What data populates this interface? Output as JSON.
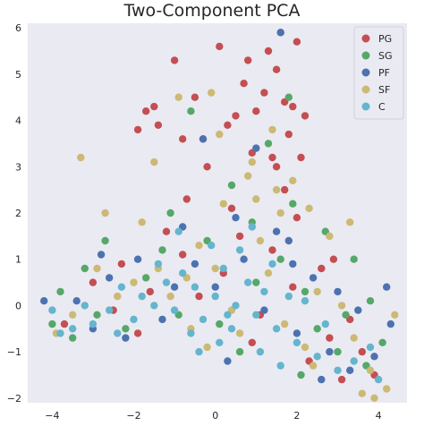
{
  "chart_data": {
    "type": "scatter",
    "title": "Two-Component PCA",
    "xlabel": "",
    "ylabel": "",
    "xlim": [
      -4.6,
      4.7
    ],
    "ylim": [
      -2.1,
      6.1
    ],
    "x_ticks": [
      "−4",
      "−2",
      "0",
      "2",
      "4"
    ],
    "y_ticks": [
      "−2",
      "−1",
      "0",
      "1",
      "2",
      "3",
      "4",
      "5",
      "6"
    ],
    "grid": false,
    "legend_position": "top-right",
    "series": [
      {
        "name": "PG",
        "color": "#c44e52",
        "points": [
          [
            0.1,
            5.6
          ],
          [
            0.8,
            5.3
          ],
          [
            1.5,
            5.1
          ],
          [
            -1.0,
            5.3
          ],
          [
            1.2,
            4.6
          ],
          [
            1.7,
            4.4
          ],
          [
            0.5,
            4.1
          ],
          [
            -1.7,
            4.2
          ],
          [
            1.9,
            4.3
          ],
          [
            -0.5,
            4.5
          ],
          [
            0.3,
            3.9
          ],
          [
            1.8,
            3.7
          ],
          [
            -0.8,
            3.6
          ],
          [
            1.4,
            3.2
          ],
          [
            -1.4,
            3.9
          ],
          [
            2.0,
            5.7
          ],
          [
            1.6,
            5.9
          ],
          [
            2.2,
            4.1
          ],
          [
            -0.3,
            3.6
          ],
          [
            -1.9,
            3.8
          ],
          [
            0.9,
            3.3
          ],
          [
            1.5,
            3.0
          ],
          [
            -0.2,
            3.0
          ],
          [
            2.1,
            3.2
          ],
          [
            0.7,
            4.8
          ],
          [
            1.3,
            5.5
          ],
          [
            -1.5,
            4.3
          ],
          [
            1.0,
            4.2
          ],
          [
            2.0,
            1.9
          ],
          [
            -1.2,
            1.6
          ],
          [
            0.6,
            1.5
          ],
          [
            -2.3,
            0.9
          ],
          [
            1.4,
            1.2
          ],
          [
            -0.8,
            1.1
          ],
          [
            2.6,
            0.8
          ],
          [
            -3.0,
            0.5
          ],
          [
            0.2,
            0.7
          ],
          [
            1.9,
            0.4
          ],
          [
            -1.6,
            0.3
          ],
          [
            3.3,
            -0.3
          ],
          [
            2.8,
            -0.7
          ],
          [
            3.6,
            -1.0
          ],
          [
            -3.7,
            -0.4
          ],
          [
            -2.5,
            -0.1
          ],
          [
            1.1,
            -0.2
          ],
          [
            3.9,
            -1.5
          ],
          [
            -0.4,
            0.2
          ],
          [
            0.9,
            -0.8
          ],
          [
            2.3,
            -1.2
          ],
          [
            -1.9,
            -0.6
          ],
          [
            3.1,
            -1.6
          ],
          [
            0.4,
            2.1
          ],
          [
            -0.7,
            2.3
          ],
          [
            1.7,
            2.5
          ],
          [
            2.9,
            1.0
          ]
        ]
      },
      {
        "name": "SG",
        "color": "#55a868",
        "points": [
          [
            1.8,
            4.5
          ],
          [
            -0.6,
            4.2
          ],
          [
            1.3,
            3.5
          ],
          [
            0.4,
            2.6
          ],
          [
            1.9,
            2.2
          ],
          [
            -1.1,
            2.0
          ],
          [
            2.7,
            1.6
          ],
          [
            -2.7,
            1.4
          ],
          [
            3.4,
            1.0
          ],
          [
            -3.2,
            0.8
          ],
          [
            0.9,
            1.8
          ],
          [
            -0.2,
            1.4
          ],
          [
            2.2,
            0.3
          ],
          [
            -1.7,
            0.6
          ],
          [
            3.8,
            0.1
          ],
          [
            -4.0,
            -0.4
          ],
          [
            -3.5,
            -0.7
          ],
          [
            1.6,
            1.0
          ],
          [
            0.1,
            -0.4
          ],
          [
            -0.9,
            -0.2
          ],
          [
            2.5,
            -0.5
          ],
          [
            3.0,
            -1.0
          ],
          [
            3.7,
            -1.3
          ],
          [
            -2.9,
            -0.2
          ],
          [
            -1.3,
            1.2
          ],
          [
            0.6,
            -1.0
          ],
          [
            4.1,
            -0.8
          ],
          [
            2.1,
            -1.5
          ],
          [
            -3.8,
            0.3
          ],
          [
            1.0,
            0.5
          ],
          [
            -2.2,
            -0.5
          ],
          [
            3.2,
            -0.2
          ]
        ]
      },
      {
        "name": "PF",
        "color": "#4c72b0",
        "points": [
          [
            1.6,
            5.9
          ],
          [
            -0.3,
            3.6
          ],
          [
            1.0,
            3.4
          ],
          [
            -0.8,
            1.7
          ],
          [
            0.5,
            1.9
          ],
          [
            1.8,
            1.4
          ],
          [
            -1.9,
            1.0
          ],
          [
            2.4,
            0.6
          ],
          [
            -2.6,
            0.6
          ],
          [
            3.0,
            0.3
          ],
          [
            -3.4,
            0.1
          ],
          [
            3.5,
            -0.1
          ],
          [
            -4.2,
            0.1
          ],
          [
            0.0,
            0.4
          ],
          [
            1.2,
            -0.1
          ],
          [
            -1.3,
            -0.3
          ],
          [
            2.0,
            -0.6
          ],
          [
            -2.2,
            -0.7
          ],
          [
            2.8,
            -1.0
          ],
          [
            3.3,
            -1.4
          ],
          [
            3.9,
            -1.1
          ],
          [
            0.7,
            1.0
          ],
          [
            -0.5,
            0.9
          ],
          [
            1.5,
            1.6
          ],
          [
            4.3,
            -0.4
          ],
          [
            -3.0,
            -0.5
          ],
          [
            2.6,
            -1.6
          ],
          [
            0.3,
            -1.2
          ],
          [
            -1.0,
            0.4
          ],
          [
            1.9,
            0.9
          ],
          [
            4.2,
            0.4
          ],
          [
            -2.8,
            1.1
          ]
        ]
      },
      {
        "name": "SF",
        "color": "#ccb974",
        "points": [
          [
            -3.3,
            3.2
          ],
          [
            -1.5,
            3.1
          ],
          [
            -0.9,
            4.5
          ],
          [
            0.1,
            3.7
          ],
          [
            1.4,
            3.8
          ],
          [
            1.5,
            2.5
          ],
          [
            1.0,
            2.3
          ],
          [
            -2.7,
            2.0
          ],
          [
            -1.8,
            1.8
          ],
          [
            0.2,
            2.2
          ],
          [
            0.8,
            2.8
          ],
          [
            1.9,
            2.7
          ],
          [
            0.9,
            3.1
          ],
          [
            -0.1,
            4.6
          ],
          [
            2.3,
            2.1
          ],
          [
            -0.4,
            1.3
          ],
          [
            -1.4,
            0.8
          ],
          [
            1.3,
            0.7
          ],
          [
            2.5,
            0.3
          ],
          [
            -2.4,
            0.2
          ],
          [
            3.1,
            0.0
          ],
          [
            -3.5,
            -0.2
          ],
          [
            0.4,
            -0.1
          ],
          [
            -0.6,
            -0.5
          ],
          [
            1.7,
            -0.4
          ],
          [
            2.2,
            -0.9
          ],
          [
            3.4,
            -0.7
          ],
          [
            3.8,
            -1.4
          ],
          [
            4.2,
            -1.8
          ],
          [
            3.6,
            -1.9
          ],
          [
            -3.9,
            -0.6
          ],
          [
            0.0,
            0.8
          ],
          [
            -1.1,
            0.2
          ],
          [
            1.1,
            1.4
          ],
          [
            -2.0,
            0.5
          ],
          [
            2.8,
            1.5
          ],
          [
            3.3,
            1.8
          ],
          [
            4.4,
            -0.2
          ],
          [
            0.6,
            -0.6
          ],
          [
            -0.2,
            -0.9
          ],
          [
            1.6,
            2.0
          ],
          [
            -0.7,
            0.6
          ],
          [
            2.4,
            -1.3
          ],
          [
            3.9,
            -2.0
          ],
          [
            -2.9,
            0.8
          ]
        ]
      },
      {
        "name": "C",
        "color": "#64b5cd",
        "points": [
          [
            -0.5,
            0.4
          ],
          [
            0.0,
            0.2
          ],
          [
            0.5,
            0.0
          ],
          [
            -0.3,
            -0.3
          ],
          [
            0.4,
            -0.5
          ],
          [
            1.0,
            -0.2
          ],
          [
            -1.0,
            -0.1
          ],
          [
            1.5,
            -0.5
          ],
          [
            -1.5,
            0.0
          ],
          [
            2.0,
            -0.8
          ],
          [
            -2.0,
            -0.3
          ],
          [
            0.2,
            0.8
          ],
          [
            -0.8,
            0.7
          ],
          [
            0.8,
            0.5
          ],
          [
            1.2,
            0.3
          ],
          [
            -1.2,
            0.5
          ],
          [
            2.5,
            -1.1
          ],
          [
            3.0,
            -1.4
          ],
          [
            -2.6,
            -0.1
          ],
          [
            -3.0,
            -0.4
          ],
          [
            -3.5,
            -0.5
          ],
          [
            0.1,
            -0.8
          ],
          [
            -0.4,
            -1.0
          ],
          [
            1.8,
            0.2
          ],
          [
            -1.8,
            0.2
          ],
          [
            3.4,
            -1.2
          ],
          [
            0.6,
            1.2
          ],
          [
            -0.1,
            1.3
          ],
          [
            1.4,
            0.9
          ],
          [
            -1.4,
            0.9
          ],
          [
            2.2,
            0.1
          ],
          [
            -2.3,
            0.4
          ],
          [
            0.3,
            -0.2
          ],
          [
            -0.6,
            -0.6
          ],
          [
            1.1,
            -1.0
          ],
          [
            2.7,
            -0.4
          ],
          [
            -3.2,
            0.0
          ],
          [
            3.8,
            -0.9
          ],
          [
            -4.0,
            -0.1
          ],
          [
            -0.9,
            1.6
          ],
          [
            0.9,
            1.7
          ],
          [
            4.0,
            -1.6
          ],
          [
            -3.8,
            -0.6
          ],
          [
            -2.4,
            -0.6
          ],
          [
            1.6,
            -1.3
          ]
        ]
      }
    ]
  }
}
